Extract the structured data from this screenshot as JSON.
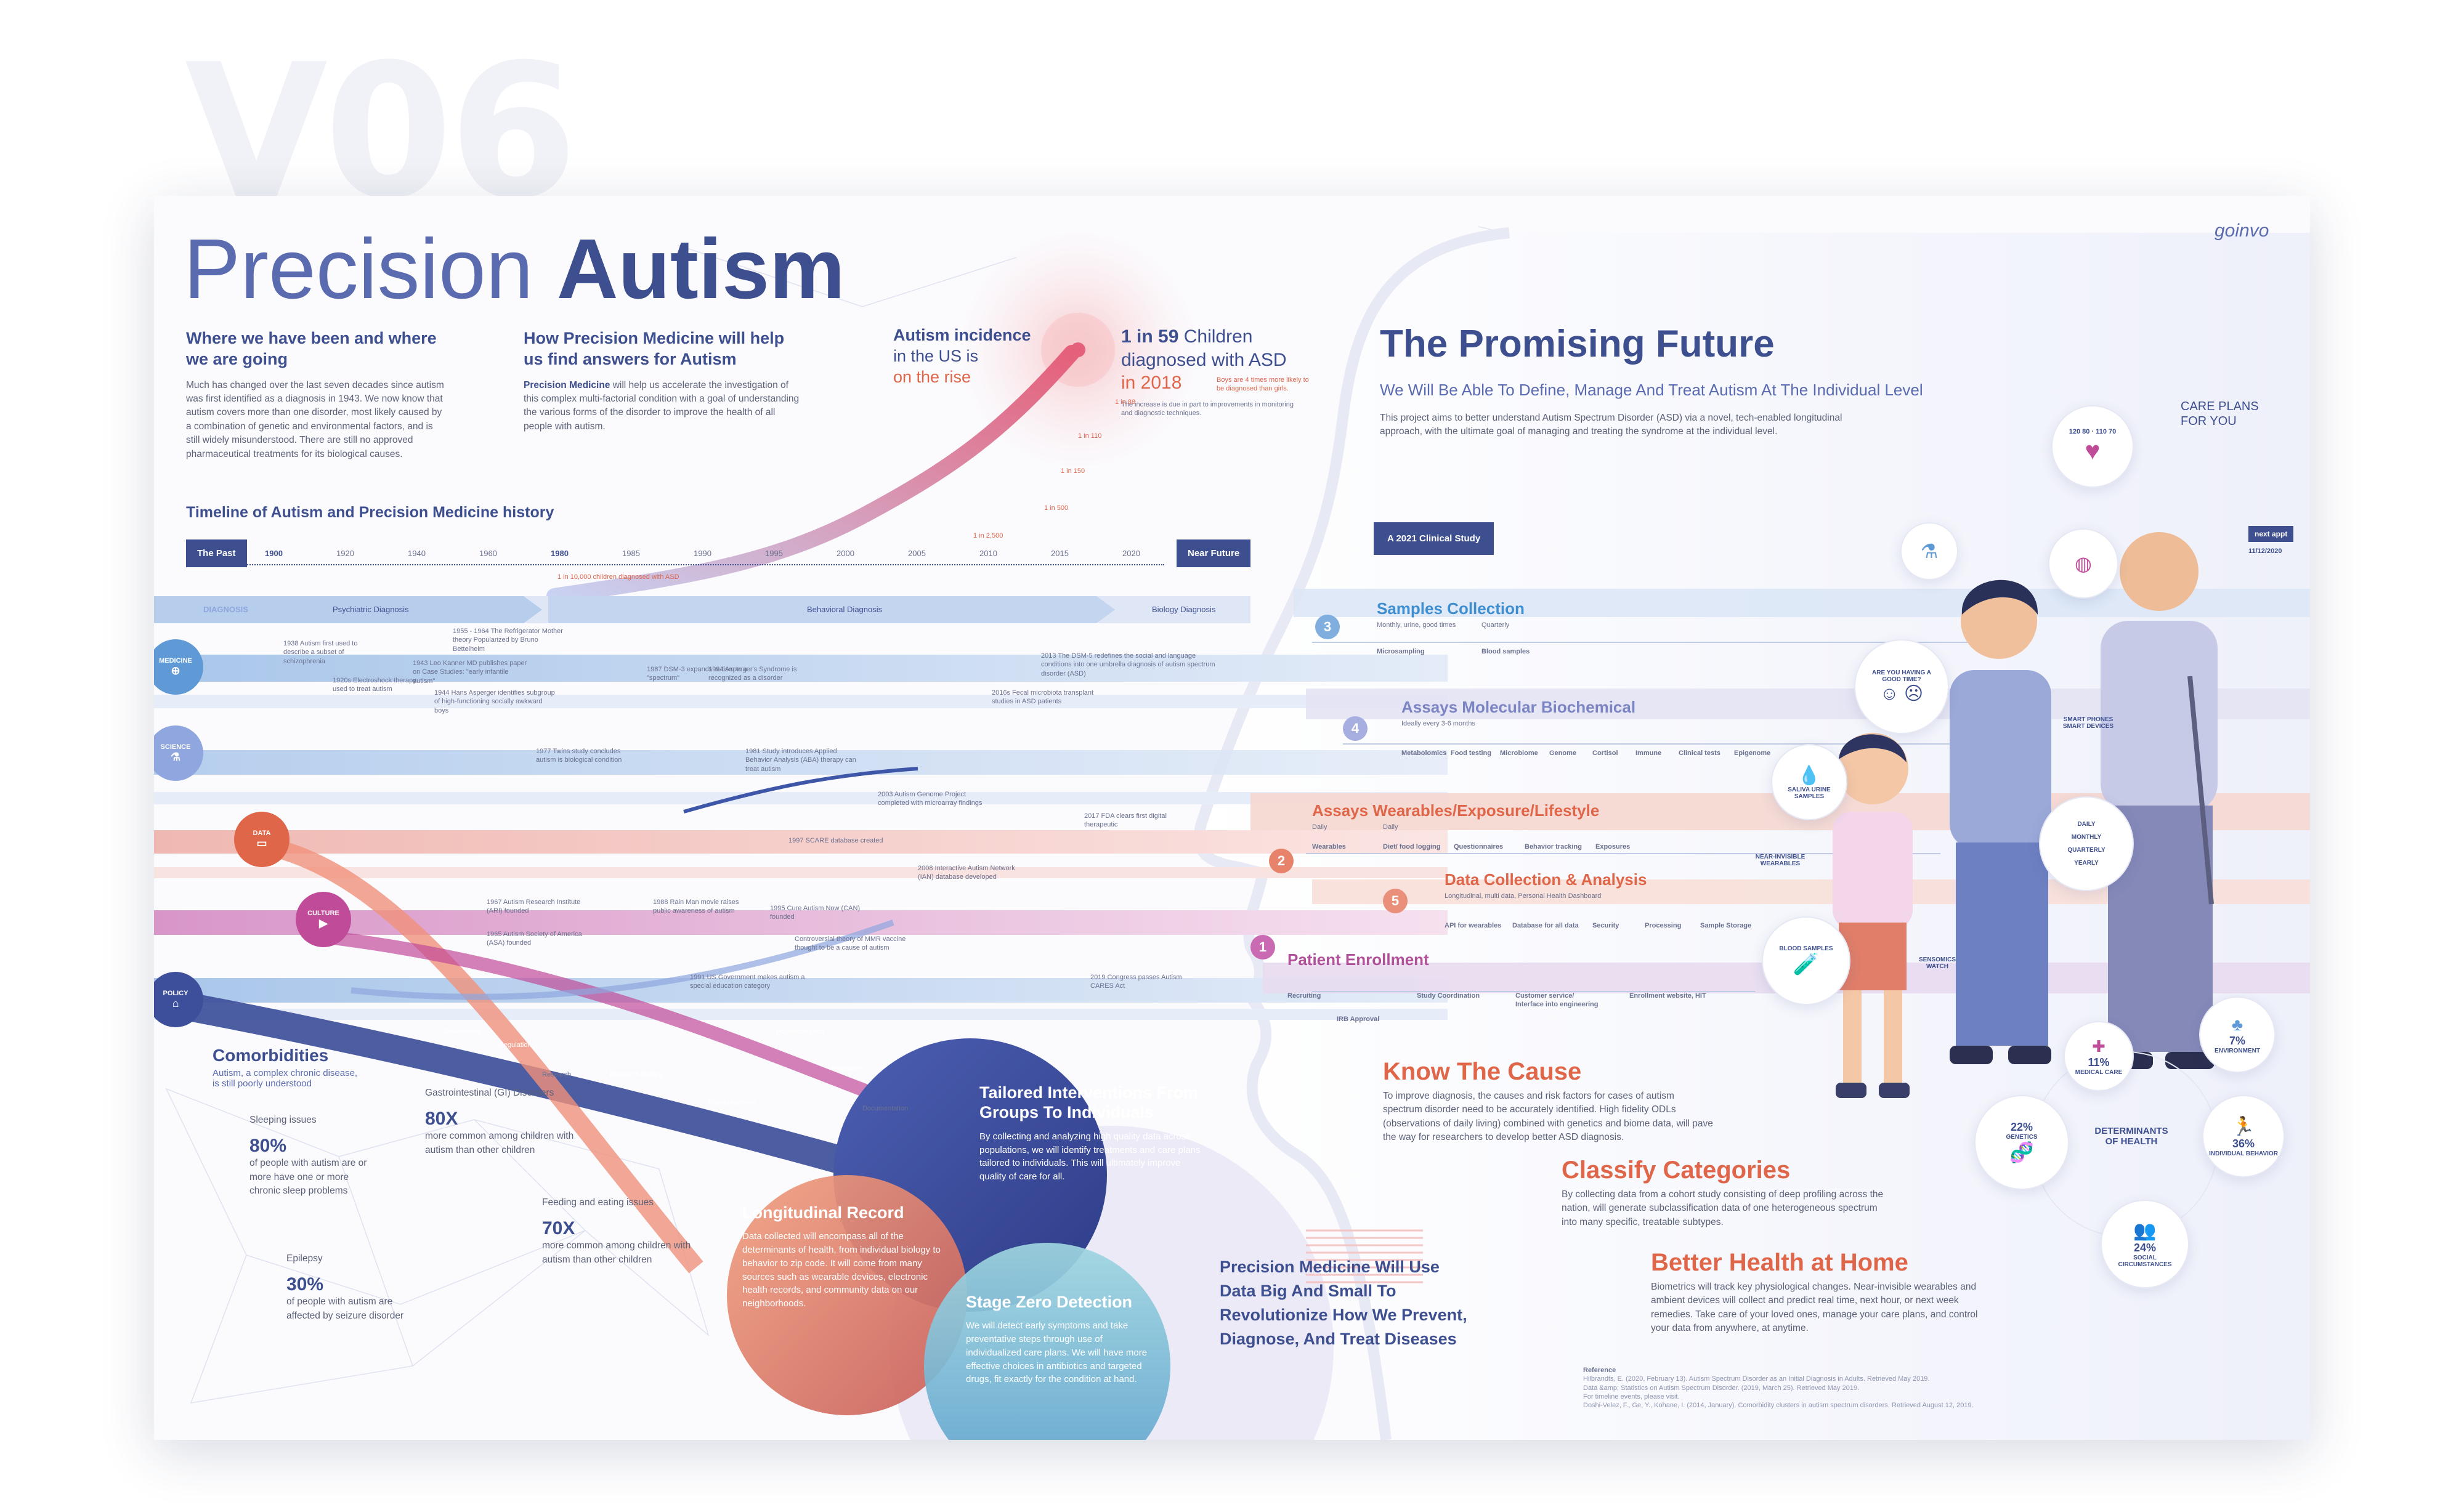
{
  "watermark": "V06",
  "brand": "goinvo",
  "title": {
    "light": "Precision ",
    "bold": "Autism"
  },
  "intro": {
    "where_heading": "Where we have been and where we are going",
    "where_text": "Much has changed over the last seven decades since autism was first identified as a diagnosis in 1943. We now know that autism covers more than one disorder, most likely caused by a combination of genetic and environmental factors, and is still widely misunderstood. There are still no approved pharmaceutical treatments for its biological causes.",
    "how_heading": "How Precision Medicine will help us find answers for Autism",
    "how_bold": "Precision Medicine",
    "how_text": " will help us accelerate the investigation of this complex multi-factorial condition with a goal of understanding the various forms of the disorder to improve the health of all people with autism."
  },
  "incidence": {
    "heading": "Autism incidence",
    "line2": "in the US is",
    "line3": "on the rise",
    "stat_bold": "1 in 59",
    "stat_rest": " Children diagnosed with ASD",
    "year": "in 2018",
    "boys_note": "Boys are 4 times more likely to be diagnosed than girls.",
    "increase_note": "The increase is due in part to improvements in monitoring and diagnostic techniques.",
    "points": [
      "1 in 10,000",
      "1 in 2,500",
      "1 in 500",
      "1 in 150",
      "1 in 110",
      "1 in 88",
      "1 in 59"
    ]
  },
  "timeline": {
    "heading": "Timeline of Autism and Precision Medicine history",
    "past_label": "The Past",
    "future_label": "Near Future",
    "years": [
      "1900",
      "1920",
      "1940",
      "1960",
      "1980",
      "1985",
      "1990",
      "1995",
      "2000",
      "2005",
      "2010",
      "2015",
      "2020"
    ],
    "diagnosis_label": "DIAGNOSIS",
    "phases": [
      "Psychiatric Diagnosis",
      "Behavioral Diagnosis",
      "Biology Diagnosis"
    ],
    "first_marker": "1 in 10,000 children diagnosed with ASD",
    "categories": [
      "MEDICINE",
      "SCIENCE",
      "DATA",
      "CULTURE",
      "POLICY"
    ],
    "medicine_events": [
      "1938 Autism first used to describe a subset of schizophrenia",
      "1920s Electroshock therapy used to treat autism",
      "1943 Leo Kanner MD publishes paper on Case Studies: \"early infantile autism\"",
      "1944 Hans Asperger identifies subgroup of high-functioning socially awkward boys",
      "1955 - 1964 The Refrigerator Mother theory Popularized by Bruno Bettelheim",
      "1987 DSM-3 expands autism to a \"spectrum\"",
      "1994 Asperger's Syndrome is recognized as a disorder",
      "2013 The DSM-5 redefines the social and language conditions into one umbrella diagnosis of autism spectrum disorder (ASD)",
      "2016s Fecal microbiota transplant studies in ASD patients"
    ],
    "science_events": [
      "1977 Twins study concludes autism is biological condition",
      "1981 Study introduces Applied Behavior Analysis (ABA) therapy can treat autism",
      "2003 Autism Genome Project completed with microarray findings"
    ],
    "data_events": [
      "1997 SCARE database created",
      "2008 Interactive Autism Network (IAN) database developed",
      "2017 FDA clears first digital therapeutic"
    ],
    "culture_events": [
      "1967 Autism Research Institute (ARI) founded",
      "1965 Autism Society of America (ASA) founded",
      "1988 Rain Man movie raises public awareness of autism",
      "1995 Cure Autism Now (CAN) founded",
      "Controversial theory of MMR vaccine thought to be a cause of autism"
    ],
    "policy_events": [
      "1991 US Government makes autism a special education category",
      "2019 Congress passes Autism CARES Act"
    ]
  },
  "flow_labels": [
    "Governance",
    "Regulation",
    "Research",
    "Research funding",
    "Reimbursement",
    "Population Data",
    "Education",
    "Documentation"
  ],
  "comorbidities": {
    "heading": "Comorbidities",
    "subtitle": "Autism, a complex chronic disease, is still poorly understood",
    "items": [
      {
        "label": "Sleeping issues",
        "value": "80%",
        "desc": "of people with autism are or more have one or more chronic sleep problems"
      },
      {
        "label": "Gastrointestinal (GI) Disorders",
        "value": "80X",
        "desc": "more common among children with autism than other children"
      },
      {
        "label": "Feeding and eating issues",
        "value": "70X",
        "desc": "more common among children with autism than other children"
      },
      {
        "label": "Epilepsy",
        "value": "30%",
        "desc": "of people with autism are affected by seizure disorder"
      }
    ]
  },
  "bubbles": {
    "tailored": {
      "title": "Tailored Interventions From Groups To Individuals",
      "text": "By collecting and analyzing high quality data across populations, we will identify treatments and care plans tailored to individuals. This will ultimately improve quality of care for all."
    },
    "longitudinal": {
      "title": "Longitudinal Record",
      "text": "Data collected will encompass all of the determinants of health, from individual biology to behavior to zip code. It will come from many sources such as wearable devices, electronic health records, and community data on our neighborhoods."
    },
    "stagezero": {
      "title": "Stage Zero Detection",
      "text": "We will detect early symptoms and take preventative steps through use of individualized care plans. We will have more effective choices in antibiotics and targeted drugs, fit exactly for the condition at hand."
    },
    "bigsmall": {
      "title": "Precision Medicine Will Use Data Big And Small To Revolutionize How We Prevent, Diagnose, And Treat Diseases"
    }
  },
  "future": {
    "heading": "The Promising Future",
    "subheading": "We Will Be Able To Define, Manage And Treat Autism At The Individual Level",
    "text": "This project aims to better understand Autism Spectrum Disorder (ASD) via a novel, tech-enabled longitudinal approach, with the ultimate goal of managing and treating the syndrome at the individual level.",
    "study_label": "A 2021 Clinical Study"
  },
  "steps": [
    {
      "num": "3",
      "title": "Samples Collection",
      "sub": [
        "Monthly, urine, good times",
        "Quarterly"
      ],
      "items": [
        "Microsampling",
        "Blood samples"
      ],
      "color": "#3f8fd0"
    },
    {
      "num": "4",
      "title": "Assays Molecular Biochemical",
      "sub": [
        "Ideally every 3-6 months"
      ],
      "items": [
        "Metabolomics",
        "Food testing",
        "Microbiome",
        "Genome",
        "Cortisol",
        "Immune",
        "Clinical tests",
        "Epigenome"
      ],
      "color": "#8a92c8"
    },
    {
      "num": "2",
      "title": "Assays Wearables/Exposure/Lifestyle",
      "sub": [
        "Daily",
        "Daily"
      ],
      "items": [
        "Wearables",
        "Diet/ food logging",
        "Questionnaires",
        "Behavior tracking",
        "Exposures"
      ],
      "color": "#e0664a"
    },
    {
      "num": "5",
      "title": "Data Collection & Analysis",
      "sub": [
        "Longitudinal, multi data, Personal Health Dashboard"
      ],
      "items": [
        "API for wearables",
        "Database for all data",
        "Security",
        "Processing",
        "Sample Storage"
      ],
      "color": "#e0664a"
    },
    {
      "num": "1",
      "title": "Patient Enrollment",
      "sub": [],
      "items": [
        "Recruiting",
        "IRB Approval",
        "Study Coordination",
        "Customer service/ Interface into engineering",
        "Enrollment website, HIT"
      ],
      "color": "#c04c99"
    }
  ],
  "sections": [
    {
      "heading": "Know The Cause",
      "text": "To improve diagnosis, the causes and risk factors for cases of autism spectrum disorder need to be accurately identified. High fidelity ODLs (observations of daily living) combined with genetics and biome data, will pave the way for researchers to develop better ASD diagnosis."
    },
    {
      "heading": "Classify Categories",
      "text": "By collecting data from a cohort study consisting of deep profiling across the nation, will generate subclassification data of one heterogeneous spectrum into many specific, treatable subtypes."
    },
    {
      "heading": "Better Health at Home",
      "text": "Biometrics will track key physiological changes. Near-invisible wearables and ambient devices will collect and predict real time, next hour, or next week remedies. Take care of your loved ones, manage your care plans, and control your data from anywhere, at anytime."
    }
  ],
  "side": {
    "care_plans": "CARE PLANS FOR YOU",
    "next_appt": "next appt",
    "appt_date": "11/12/2020",
    "vitals": [
      "120 80",
      "110 70"
    ],
    "good_time": "ARE YOU HAVING A GOOD TIME?",
    "phones": "SMART PHONES SMART DEVICES",
    "frequency": [
      "DAILY",
      "MONTHLY",
      "QUARTERLY",
      "YEARLY"
    ],
    "saliva": "SALIVA URINE SAMPLES",
    "wearables": "NEAR-INVISIBLE WEARABLES",
    "blood": "BLOOD SAMPLES",
    "sensomics": "SENSOMICS WATCH"
  },
  "determinants": {
    "heading": "DETERMINANTS OF HEALTH",
    "items": [
      {
        "pct": "7%",
        "label": "ENVIRONMENT"
      },
      {
        "pct": "11%",
        "label": "MEDICAL CARE"
      },
      {
        "pct": "22%",
        "label": "GENETICS"
      },
      {
        "pct": "36%",
        "label": "INDIVIDUAL BEHAVIOR"
      },
      {
        "pct": "24%",
        "label": "SOCIAL CIRCUMSTANCES"
      }
    ]
  },
  "references": {
    "heading": "Reference",
    "lines": [
      "Hilbrandts, E. (2020, February 13). Autism Spectrum Disorder as an Initial Diagnosis in Adults. Retrieved May 2019.",
      "Data &amp; Statistics on Autism Spectrum Disorder. (2019, March 25). Retrieved May 2019.",
      "For timeline events, please visit.",
      "Doshi-Velez, F., Ge, Y., Kohane, I. (2014, January). Comorbidity clusters in autism spectrum disorders. Retrieved August 12, 2019."
    ]
  }
}
